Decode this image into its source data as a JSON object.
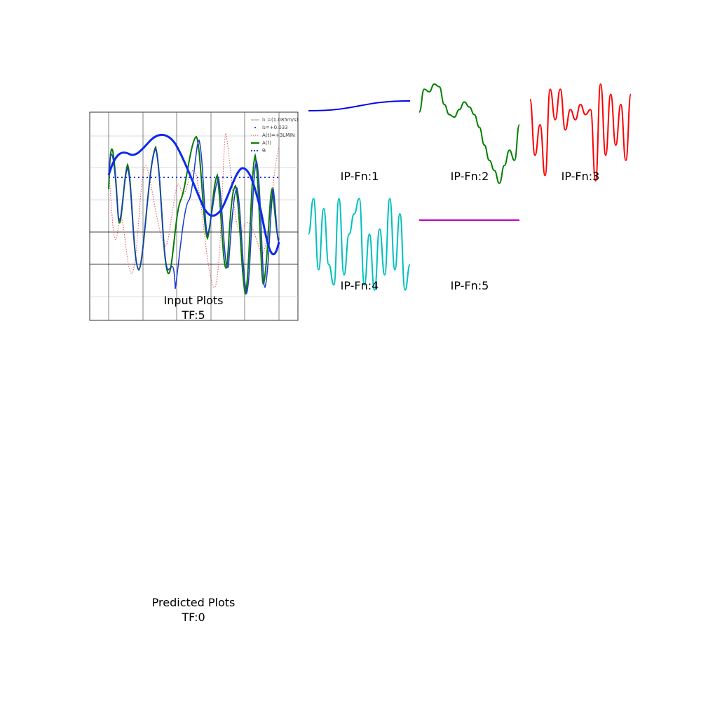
{
  "panels": {
    "input_caption_line1": "Input Plots",
    "input_caption_line2": "TF:5",
    "predicted_caption_line1": "Predicted Plots",
    "predicted_caption_line2": "TF:0"
  },
  "input_legend": [
    "I₁ =(1.085m/s)",
    "I₂=+0.033",
    "A(t)=+3LMIN",
    "A(t)",
    "θₗ"
  ],
  "chart_data": [
    {
      "type": "line",
      "title": "IP-Fn:1",
      "series": [
        {
          "color": "#0000ee",
          "x": [
            0,
            1
          ],
          "y": [
            0,
            1
          ]
        }
      ]
    },
    {
      "type": "line",
      "title": "IP-Fn:2",
      "series": [
        {
          "color": "#008000",
          "x": [
            0,
            0.5,
            1,
            1.5,
            2,
            2.5,
            3,
            3.5,
            4,
            4.5,
            5,
            5.5,
            6,
            6.5,
            7,
            7.5,
            8,
            8.5,
            9,
            9.5,
            10
          ],
          "y": [
            0.45,
            0.9,
            0.85,
            1.0,
            0.95,
            0.6,
            0.4,
            0.35,
            0.5,
            0.65,
            0.55,
            0.4,
            0.15,
            -0.2,
            -0.5,
            -0.7,
            -0.95,
            -0.6,
            -0.3,
            -0.5,
            0.2
          ]
        }
      ]
    },
    {
      "type": "line",
      "title": "IP-Fn:3",
      "series": [
        {
          "color": "#ff0000",
          "x": [
            0,
            0.5,
            1,
            1.5,
            2,
            2.5,
            3,
            3.5,
            4,
            4.5,
            5,
            5.5,
            6,
            6.5,
            7,
            7.5,
            8,
            8.5,
            9,
            9.5,
            10
          ],
          "y": [
            0.7,
            -0.4,
            0.2,
            -0.8,
            0.9,
            0.3,
            0.9,
            0.1,
            0.5,
            0.3,
            0.6,
            0.4,
            0.5,
            -0.9,
            1.0,
            -0.4,
            0.8,
            -0.2,
            0.6,
            -0.5,
            0.8
          ]
        }
      ]
    },
    {
      "type": "line",
      "title": "IP-Fn:4",
      "series": [
        {
          "color": "#00bfbf",
          "x": [
            0,
            0.5,
            1,
            1.5,
            2,
            2.5,
            3,
            3.5,
            4,
            4.5,
            5,
            5.5,
            6,
            6.5,
            7,
            7.5,
            8,
            8.5,
            9,
            9.5,
            10
          ],
          "y": [
            0.2,
            0.9,
            -0.5,
            0.7,
            -0.4,
            -0.8,
            0.9,
            -0.6,
            0.2,
            0.6,
            0.9,
            -0.8,
            0.2,
            -0.9,
            0.3,
            -0.6,
            0.9,
            -0.5,
            0.6,
            -0.9,
            -0.4
          ]
        }
      ]
    },
    {
      "type": "line",
      "title": "IP-Fn:5",
      "series": [
        {
          "color": "#bf00bf",
          "x": [
            0,
            1
          ],
          "y": [
            0,
            0
          ]
        }
      ]
    }
  ]
}
